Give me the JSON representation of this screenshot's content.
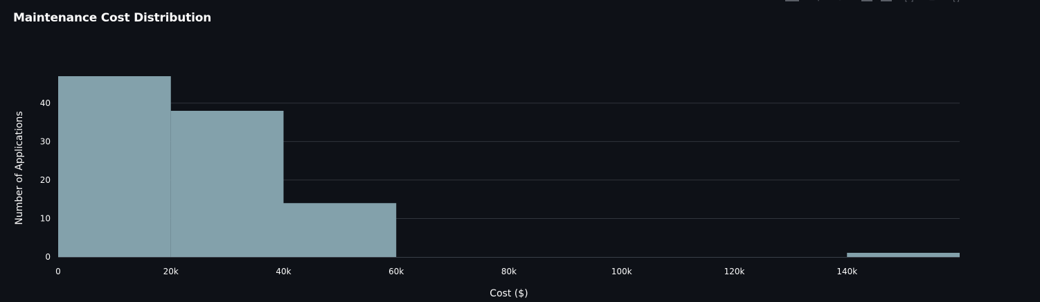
{
  "title": "Maintenance Cost Distribution",
  "modebar": {
    "icons": [
      "camera-icon",
      "zoom-icon",
      "pan-icon",
      "box-select-icon",
      "lasso-icon",
      "zoom-in-icon",
      "zoom-out-icon",
      "autoscale-icon"
    ]
  },
  "colors": {
    "background": "#0e1117",
    "bar": "#83a1ab",
    "grid": "#31353d",
    "text": "#fafafa"
  },
  "chart_data": {
    "type": "bar",
    "subtype": "histogram",
    "title": "Maintenance Cost Distribution",
    "xlabel": "Cost ($)",
    "ylabel": "Number of Applications",
    "bins": [
      {
        "x0": 0,
        "x1": 20000,
        "count": 47
      },
      {
        "x0": 20000,
        "x1": 40000,
        "count": 38
      },
      {
        "x0": 40000,
        "x1": 60000,
        "count": 14
      },
      {
        "x0": 60000,
        "x1": 80000,
        "count": 0
      },
      {
        "x0": 80000,
        "x1": 100000,
        "count": 0
      },
      {
        "x0": 100000,
        "x1": 120000,
        "count": 0
      },
      {
        "x0": 120000,
        "x1": 140000,
        "count": 0
      },
      {
        "x0": 140000,
        "x1": 160000,
        "count": 1
      }
    ],
    "x_ticks": [
      {
        "value": 0,
        "label": "0"
      },
      {
        "value": 20000,
        "label": "20k"
      },
      {
        "value": 40000,
        "label": "40k"
      },
      {
        "value": 60000,
        "label": "60k"
      },
      {
        "value": 80000,
        "label": "80k"
      },
      {
        "value": 100000,
        "label": "100k"
      },
      {
        "value": 120000,
        "label": "120k"
      },
      {
        "value": 140000,
        "label": "140k"
      }
    ],
    "y_ticks": [
      {
        "value": 0,
        "label": "0"
      },
      {
        "value": 10,
        "label": "10"
      },
      {
        "value": 20,
        "label": "20"
      },
      {
        "value": 30,
        "label": "30"
      },
      {
        "value": 40,
        "label": "40"
      }
    ],
    "xlim": [
      0,
      160000
    ],
    "ylim": [
      0,
      47
    ],
    "grid": true,
    "legend": false
  }
}
